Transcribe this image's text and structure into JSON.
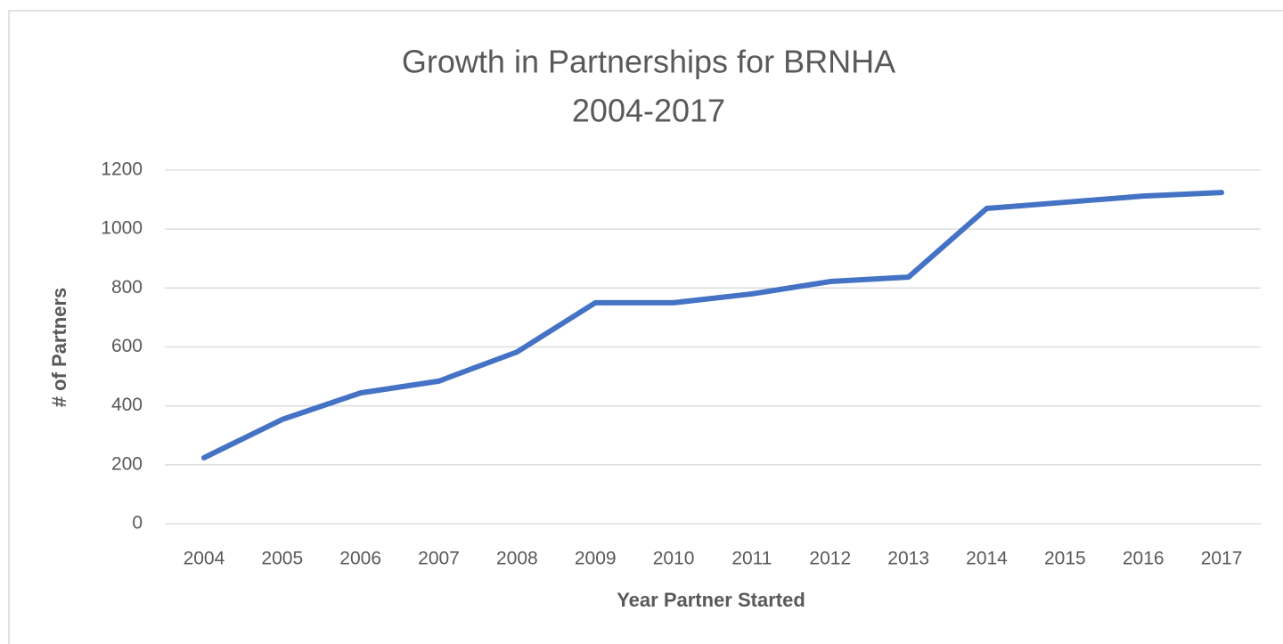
{
  "chart_data": {
    "type": "line",
    "title": [
      "Growth in Partnerships for BRNHA",
      "2004-2017"
    ],
    "x_label": "Year Partner Started",
    "y_label": "# of Partners",
    "categories": [
      "2004",
      "2005",
      "2006",
      "2007",
      "2008",
      "2009",
      "2010",
      "2011",
      "2012",
      "2013",
      "2014",
      "2015",
      "2016",
      "2017"
    ],
    "series": [
      {
        "name": "Partners",
        "color": "#4472c4",
        "values": [
          224,
          354,
          444,
          484,
          583,
          750,
          750,
          780,
          822,
          837,
          1070,
          1091,
          1112,
          1124
        ]
      }
    ],
    "ylim": [
      0,
      1200
    ],
    "yticks": [
      0,
      200,
      400,
      600,
      800,
      1000,
      1200
    ],
    "grid": true
  }
}
